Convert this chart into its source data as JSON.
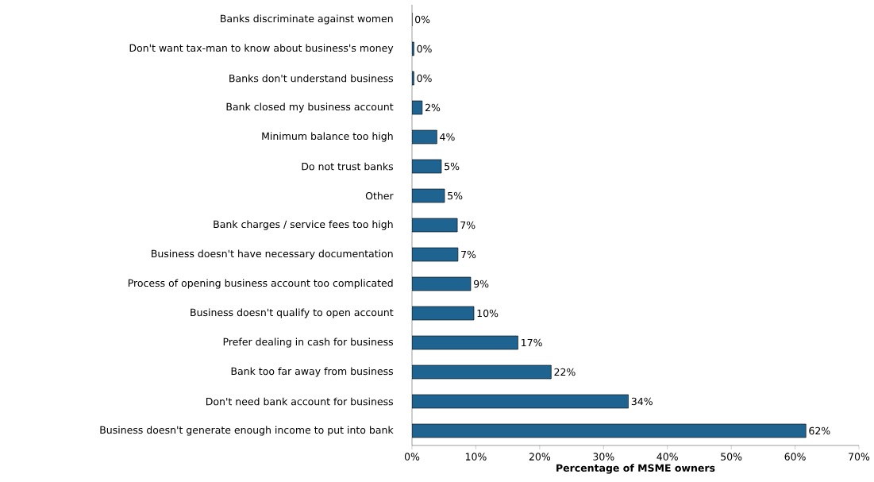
{
  "chart_data": {
    "type": "bar",
    "orientation": "horizontal",
    "xlabel": "Percentage of MSME owners",
    "categories": [
      "Banks discriminate against women",
      "Don't want tax-man to know about business's money",
      "Banks don't understand business",
      "Bank closed my business account",
      "Minimum balance too high",
      "Do not trust banks",
      "Other",
      "Bank charges / service fees too high",
      "Business doesn't have necessary documentation",
      "Process of opening business account too complicated",
      "Business doesn't qualify to open account",
      "Prefer dealing in cash for business",
      "Bank too far away from business",
      "Don't need bank account for business",
      "Business doesn't generate enough income to put into bank"
    ],
    "values": [
      0,
      0.3,
      0.3,
      1.6,
      3.9,
      4.6,
      5.1,
      7.1,
      7.2,
      9.2,
      9.7,
      16.6,
      21.8,
      33.9,
      61.7
    ],
    "value_labels": [
      "0%",
      "0%",
      "0%",
      "2%",
      "4%",
      "5%",
      "5%",
      "7%",
      "7%",
      "9%",
      "10%",
      "17%",
      "22%",
      "34%",
      "62%"
    ],
    "color": "#1f6391",
    "xlim": [
      0,
      70
    ],
    "xticks": [
      {
        "value": 0,
        "label": "0%"
      },
      {
        "value": 10,
        "label": "10%"
      },
      {
        "value": 20,
        "label": "20%"
      },
      {
        "value": 30,
        "label": "30%"
      },
      {
        "value": 40,
        "label": "40%"
      },
      {
        "value": 50,
        "label": "50%"
      },
      {
        "value": 60,
        "label": "60%"
      },
      {
        "value": 70,
        "label": "70%"
      }
    ]
  }
}
